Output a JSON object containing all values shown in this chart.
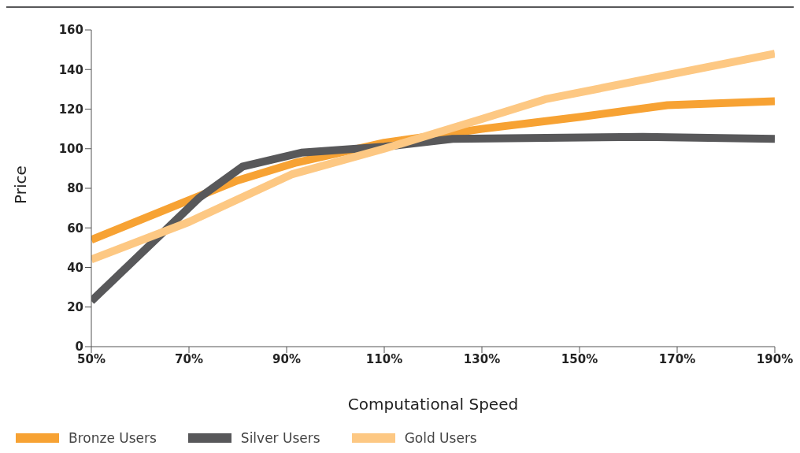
{
  "chart_data": {
    "type": "line",
    "xlabel": "Computational Speed",
    "ylabel": "Price",
    "xlim": [
      50,
      190
    ],
    "xticks": [
      {
        "value": 50,
        "label": "50%"
      },
      {
        "value": 70,
        "label": "70%"
      },
      {
        "value": 90,
        "label": "90%"
      },
      {
        "value": 110,
        "label": "110%"
      },
      {
        "value": 130,
        "label": "130%"
      },
      {
        "value": 150,
        "label": "150%"
      },
      {
        "value": 170,
        "label": "170%"
      },
      {
        "value": 190,
        "label": "190%"
      }
    ],
    "ylim": [
      0,
      160
    ],
    "yticks": [
      0,
      20,
      40,
      60,
      80,
      100,
      120,
      140,
      160
    ],
    "grid": false,
    "legend": "bottom",
    "marker": "none",
    "line_style": "solid",
    "series": [
      {
        "name": "Bronze Users",
        "color": "#f7a233",
        "x": [
          50,
          80,
          92,
          110,
          130,
          150,
          168,
          190
        ],
        "values": [
          54,
          84,
          93,
          103,
          110,
          116,
          122,
          124
        ]
      },
      {
        "name": "Silver Users",
        "color": "#58585a",
        "x": [
          50,
          72,
          81,
          93,
          110,
          124,
          163,
          190
        ],
        "values": [
          23,
          75,
          91,
          98,
          101,
          105,
          106,
          105
        ]
      },
      {
        "name": "Gold Users",
        "color": "#fdc883",
        "x": [
          50,
          70,
          91,
          110,
          130,
          143,
          190
        ],
        "values": [
          44,
          63,
          87,
          100,
          115,
          125,
          148
        ]
      }
    ]
  }
}
